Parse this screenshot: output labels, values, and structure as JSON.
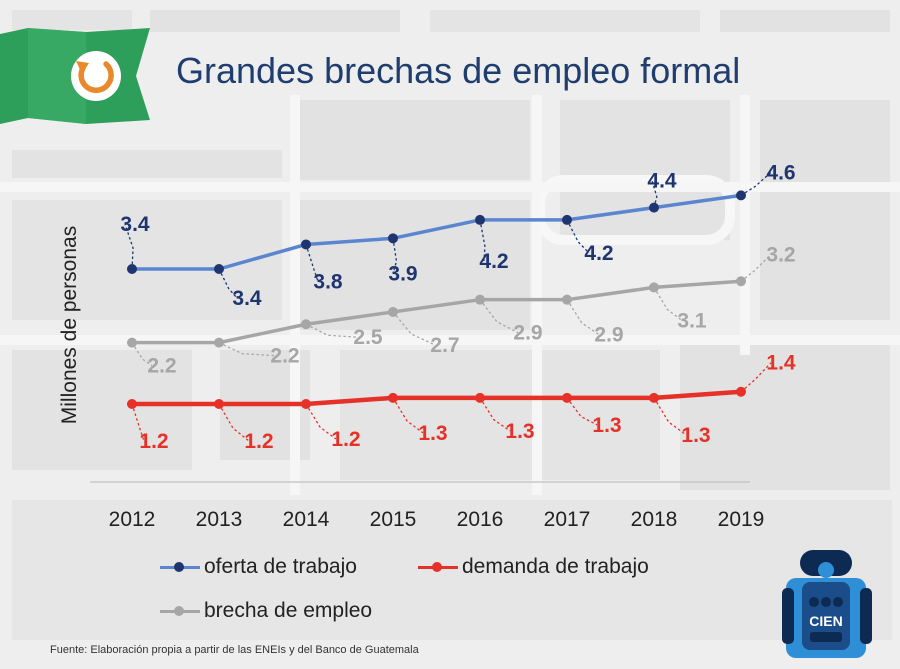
{
  "title": "Grandes brechas de empleo formal",
  "source": "Fuente: Elaboración propia a partir de las ENEIs y del Banco de Guatemala",
  "logo_text": "CIEN",
  "colors": {
    "title": "#1f3d6e",
    "banner": "#2e9e5b",
    "refresh_icon": "#e8892c"
  },
  "icons": {
    "banner": "refresh-icon",
    "logo": "cien-robot-logo"
  },
  "chart_data": {
    "type": "line",
    "title": "",
    "xlabel": "",
    "ylabel": "Millones de personas",
    "x": [
      "2012",
      "2013",
      "2014",
      "2015",
      "2016",
      "2017",
      "2018",
      "2019"
    ],
    "ylim": [
      0,
      5
    ],
    "grid": false,
    "legend_position": "bottom",
    "series": [
      {
        "name": "oferta de trabajo",
        "values": [
          3.4,
          3.4,
          3.8,
          3.9,
          4.2,
          4.2,
          4.4,
          4.6
        ],
        "labels": [
          "3.4",
          "3.4",
          "3.8",
          "3.9",
          "4.2",
          "4.2",
          "4.4",
          "4.6"
        ],
        "color": "#5b86cf",
        "marker_color": "#1e3570",
        "label_color": "#1e3570"
      },
      {
        "name": "demanda de trabajo",
        "values": [
          1.2,
          1.2,
          1.2,
          1.3,
          1.3,
          1.3,
          1.3,
          1.4
        ],
        "labels": [
          "1.2",
          "1.2",
          "1.2",
          "1.3",
          "1.3",
          "1.3",
          "1.3",
          "1.4"
        ],
        "color": "#e53127",
        "marker_color": "#e53127",
        "label_color": "#e53127"
      },
      {
        "name": "brecha de empleo",
        "values": [
          2.2,
          2.2,
          2.5,
          2.7,
          2.9,
          2.9,
          3.1,
          3.2
        ],
        "labels": [
          "2.2",
          "2.2",
          "2.5",
          "2.7",
          "2.9",
          "2.9",
          "3.1",
          "3.2"
        ],
        "color": "#a6a6a6",
        "marker_color": "#a6a6a6",
        "label_color": "#a6a6a6"
      }
    ]
  }
}
